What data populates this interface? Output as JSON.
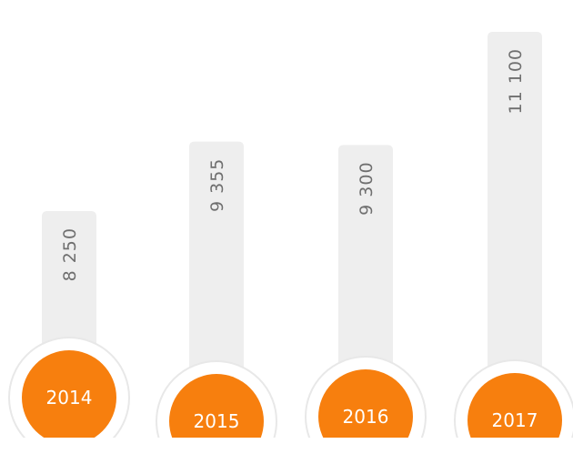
{
  "chart_data": {
    "type": "bar",
    "categories": [
      "2014",
      "2015",
      "2016",
      "2017"
    ],
    "values": [
      8250,
      9355,
      9300,
      11100
    ],
    "value_labels": [
      "8 250",
      "9 355",
      "9 300",
      "11 100"
    ],
    "color": "#eeeeee",
    "marker_color": "#f77f0e"
  }
}
